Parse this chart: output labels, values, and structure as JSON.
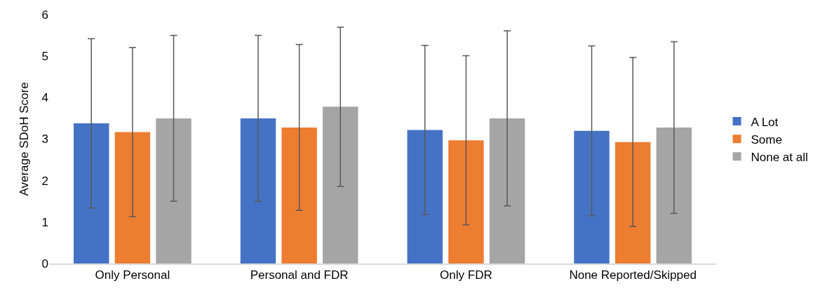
{
  "chart_data": {
    "type": "bar",
    "ylabel": "Average SDoH Score",
    "categories": [
      "Only Personal",
      "Personal and FDR",
      "Only FDR",
      "None Reported/Skipped"
    ],
    "series": [
      {
        "name": "A Lot",
        "color": "#4472c4",
        "values": [
          3.38,
          3.5,
          3.22,
          3.2
        ],
        "errors": [
          2.04,
          2.0,
          2.04,
          2.05
        ]
      },
      {
        "name": "Some",
        "color": "#ed7d31",
        "values": [
          3.17,
          3.28,
          2.97,
          2.93
        ],
        "errors": [
          2.04,
          2.0,
          2.04,
          2.04
        ]
      },
      {
        "name": "None at all",
        "color": "#a5a5a5",
        "values": [
          3.5,
          3.78,
          3.5,
          3.28
        ],
        "errors": [
          2.0,
          1.92,
          2.11,
          2.07
        ]
      }
    ],
    "ylim": [
      0,
      6
    ],
    "yticks": [
      0,
      1,
      2,
      3,
      4,
      5,
      6
    ],
    "grid": false,
    "legend": "right"
  }
}
